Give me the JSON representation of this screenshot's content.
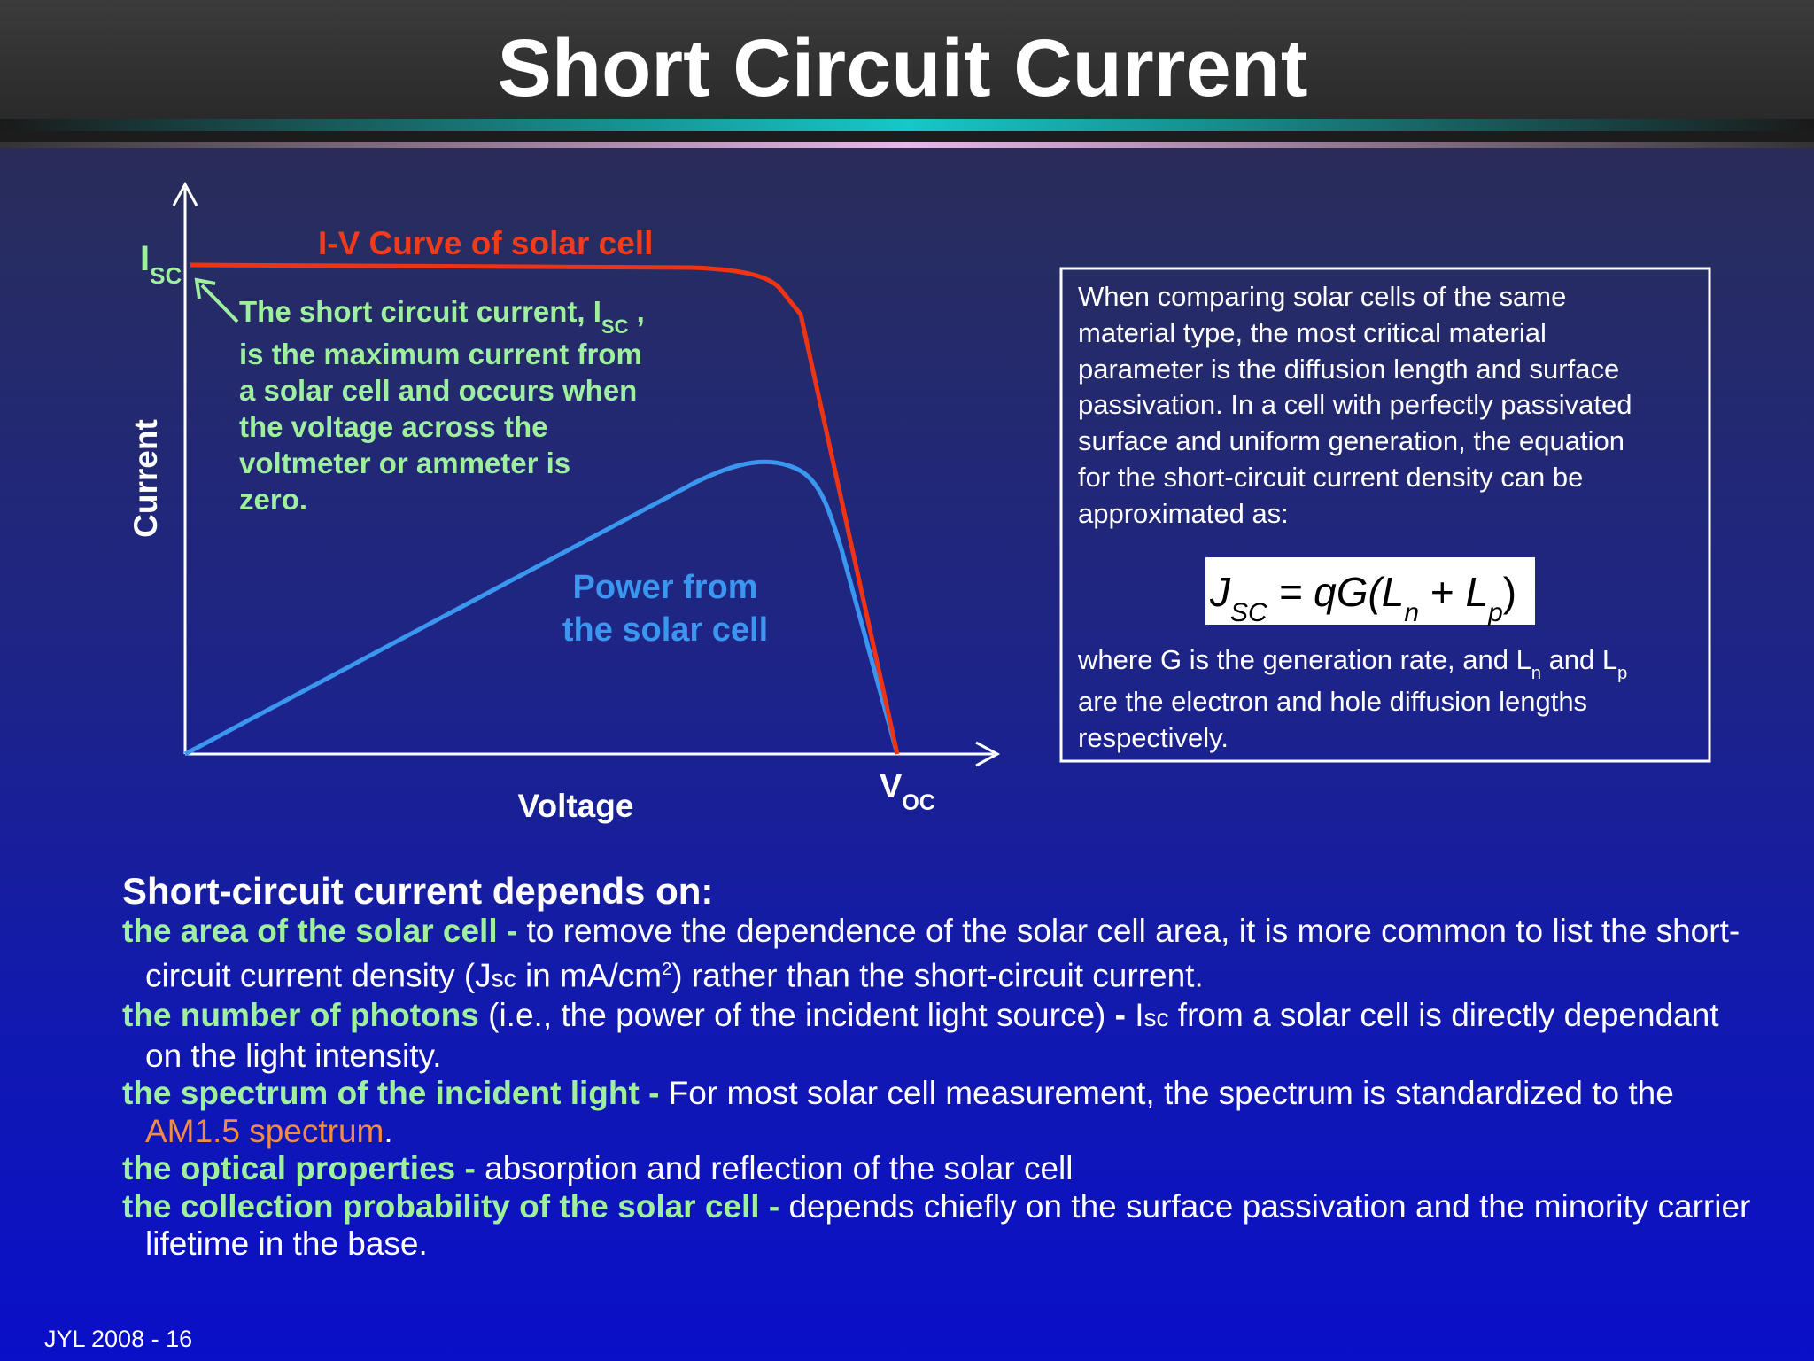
{
  "title": "Short Circuit Current",
  "diagram": {
    "curve_label": "I-V Curve of solar cell",
    "isc_label": [
      "I",
      "SC"
    ],
    "voc_label": [
      "V",
      "OC"
    ],
    "y_axis_label": "Current",
    "x_axis_label": "Voltage",
    "power_label": [
      "Power from",
      "the solar cell"
    ],
    "annotation": {
      "first_line": [
        "The short circuit current, I",
        "SC",
        " ,"
      ],
      "lines": [
        "is the maximum current from",
        "a solar cell and occurs when",
        "the voltage across the",
        "voltmeter or ammeter is",
        "zero."
      ]
    }
  },
  "info_box": {
    "lines": [
      "When comparing solar cells of the same",
      "material type, the most critical material",
      "parameter is the diffusion length and surface",
      "passivation. In a cell with perfectly passivated",
      "surface and uniform generation, the equation",
      "for the short-circuit current density can be",
      "approximated as:"
    ],
    "equation": [
      "J",
      "SC",
      " = qG(",
      "L",
      "n",
      " + ",
      "L",
      "p",
      ")"
    ],
    "after_first_line": [
      "where G is the generation rate, and L",
      "n",
      " and L",
      "p"
    ],
    "after_lines": [
      "are the electron and hole diffusion lengths",
      "respectively."
    ]
  },
  "factors": {
    "heading": "Short-circuit current depends on:",
    "items": [
      {
        "term": "the area of the solar cell -",
        "text": [
          " to remove the dependence of the solar cell area, it is more common to list the short-circuit current density (J",
          "sc",
          " in mA/cm",
          "2",
          ") rather than the short-circuit current."
        ]
      },
      {
        "term": "the number of photons",
        "text": [
          " (i.e., the power of the incident light source) ",
          "-",
          "  I",
          "sc",
          " from a solar cell is directly dependant on the light intensity."
        ]
      },
      {
        "term": "the spectrum of the incident light -",
        "text": [
          " For most solar cell measurement, the spectrum is standardized to the ",
          "AM1.5 spectrum",
          "."
        ]
      },
      {
        "term": "the optical properties -",
        "text": [
          " absorption and reflection of the solar cell"
        ]
      },
      {
        "term": "the collection probability of the solar cell -",
        "text": [
          " depends chiefly on the surface passivation and the minority carrier lifetime in the base."
        ]
      }
    ]
  },
  "footer": "JYL 2008 - 16"
}
